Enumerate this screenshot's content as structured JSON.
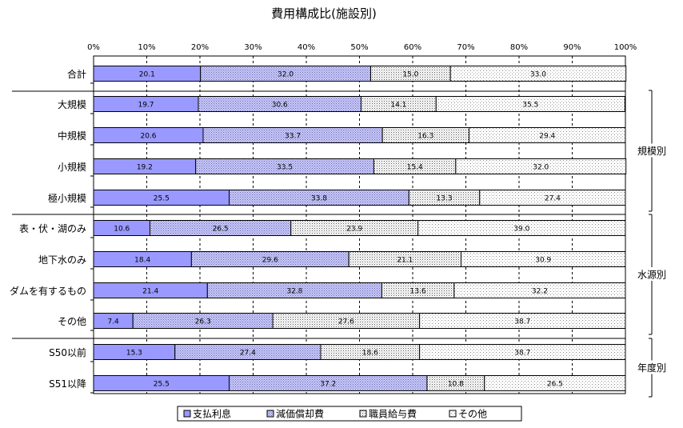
{
  "chart_data": {
    "type": "bar",
    "orientation": "horizontal",
    "stacked": true,
    "title": "費用構成比(施設別)",
    "xlim": [
      0,
      100
    ],
    "x_ticks": [
      "0%",
      "10%",
      "20%",
      "30%",
      "40%",
      "50%",
      "60%",
      "70%",
      "80%",
      "90%",
      "100%"
    ],
    "grid": true,
    "legend_position": "bottom",
    "categories": [
      "合計",
      "大規模",
      "中規模",
      "小規模",
      "極小規模",
      "表・伏・湖のみ",
      "地下水のみ",
      "ダムを有するもの",
      "その他",
      "S50以前",
      "S51以降"
    ],
    "group_labels": [
      {
        "label": "規模別",
        "categories": [
          "大規模",
          "中規模",
          "小規模",
          "極小規模"
        ]
      },
      {
        "label": "水源別",
        "categories": [
          "表・伏・湖のみ",
          "地下水のみ",
          "ダムを有するもの",
          "その他"
        ]
      },
      {
        "label": "年度別",
        "categories": [
          "S50以前",
          "S51以降"
        ]
      }
    ],
    "series": [
      {
        "name": "支払利息",
        "color": "#9999ff",
        "pattern": "solid",
        "values": [
          20.1,
          19.7,
          20.6,
          19.2,
          25.5,
          10.6,
          18.4,
          21.4,
          7.4,
          15.3,
          25.5
        ],
        "labels": [
          "20.1",
          "19.7",
          "20.6",
          "19.2",
          "25.5",
          "10.6",
          "18.4",
          "21.4",
          "7.4",
          "15.3",
          "25.5"
        ]
      },
      {
        "name": "減価償却費",
        "color": "#ccccff",
        "pattern": "dense-dots",
        "values": [
          32.0,
          30.6,
          33.7,
          33.5,
          33.8,
          26.5,
          29.6,
          32.8,
          26.3,
          27.4,
          37.2
        ],
        "labels": [
          "32.0",
          "30.6",
          "33.7",
          "33.5",
          "33.8",
          "26.5",
          "29.6",
          "32.8",
          "26.3",
          "27.4",
          "37.2"
        ]
      },
      {
        "name": "職員給与費",
        "color": "#e0e0e0",
        "pattern": "medium-dots",
        "values": [
          15.0,
          14.1,
          16.3,
          15.4,
          13.3,
          23.9,
          21.1,
          13.6,
          27.6,
          18.6,
          10.8
        ],
        "labels": [
          "15.0",
          "14.1",
          "16.3",
          "15.4",
          "13.3",
          "23.9",
          "21.1",
          "13.6",
          "27.6",
          "18.6",
          "10.8"
        ]
      },
      {
        "name": "その他",
        "color": "#ffffff",
        "pattern": "sparse-dots",
        "values": [
          33.0,
          35.5,
          29.4,
          32.0,
          27.4,
          39.0,
          30.9,
          32.2,
          38.7,
          38.7,
          26.5
        ],
        "labels": [
          "33.0",
          "35.5",
          "29.4",
          "32.0",
          "27.4",
          "39.0",
          "30.9",
          "32.2",
          "38.7",
          "38.7",
          "26.5"
        ]
      }
    ]
  }
}
